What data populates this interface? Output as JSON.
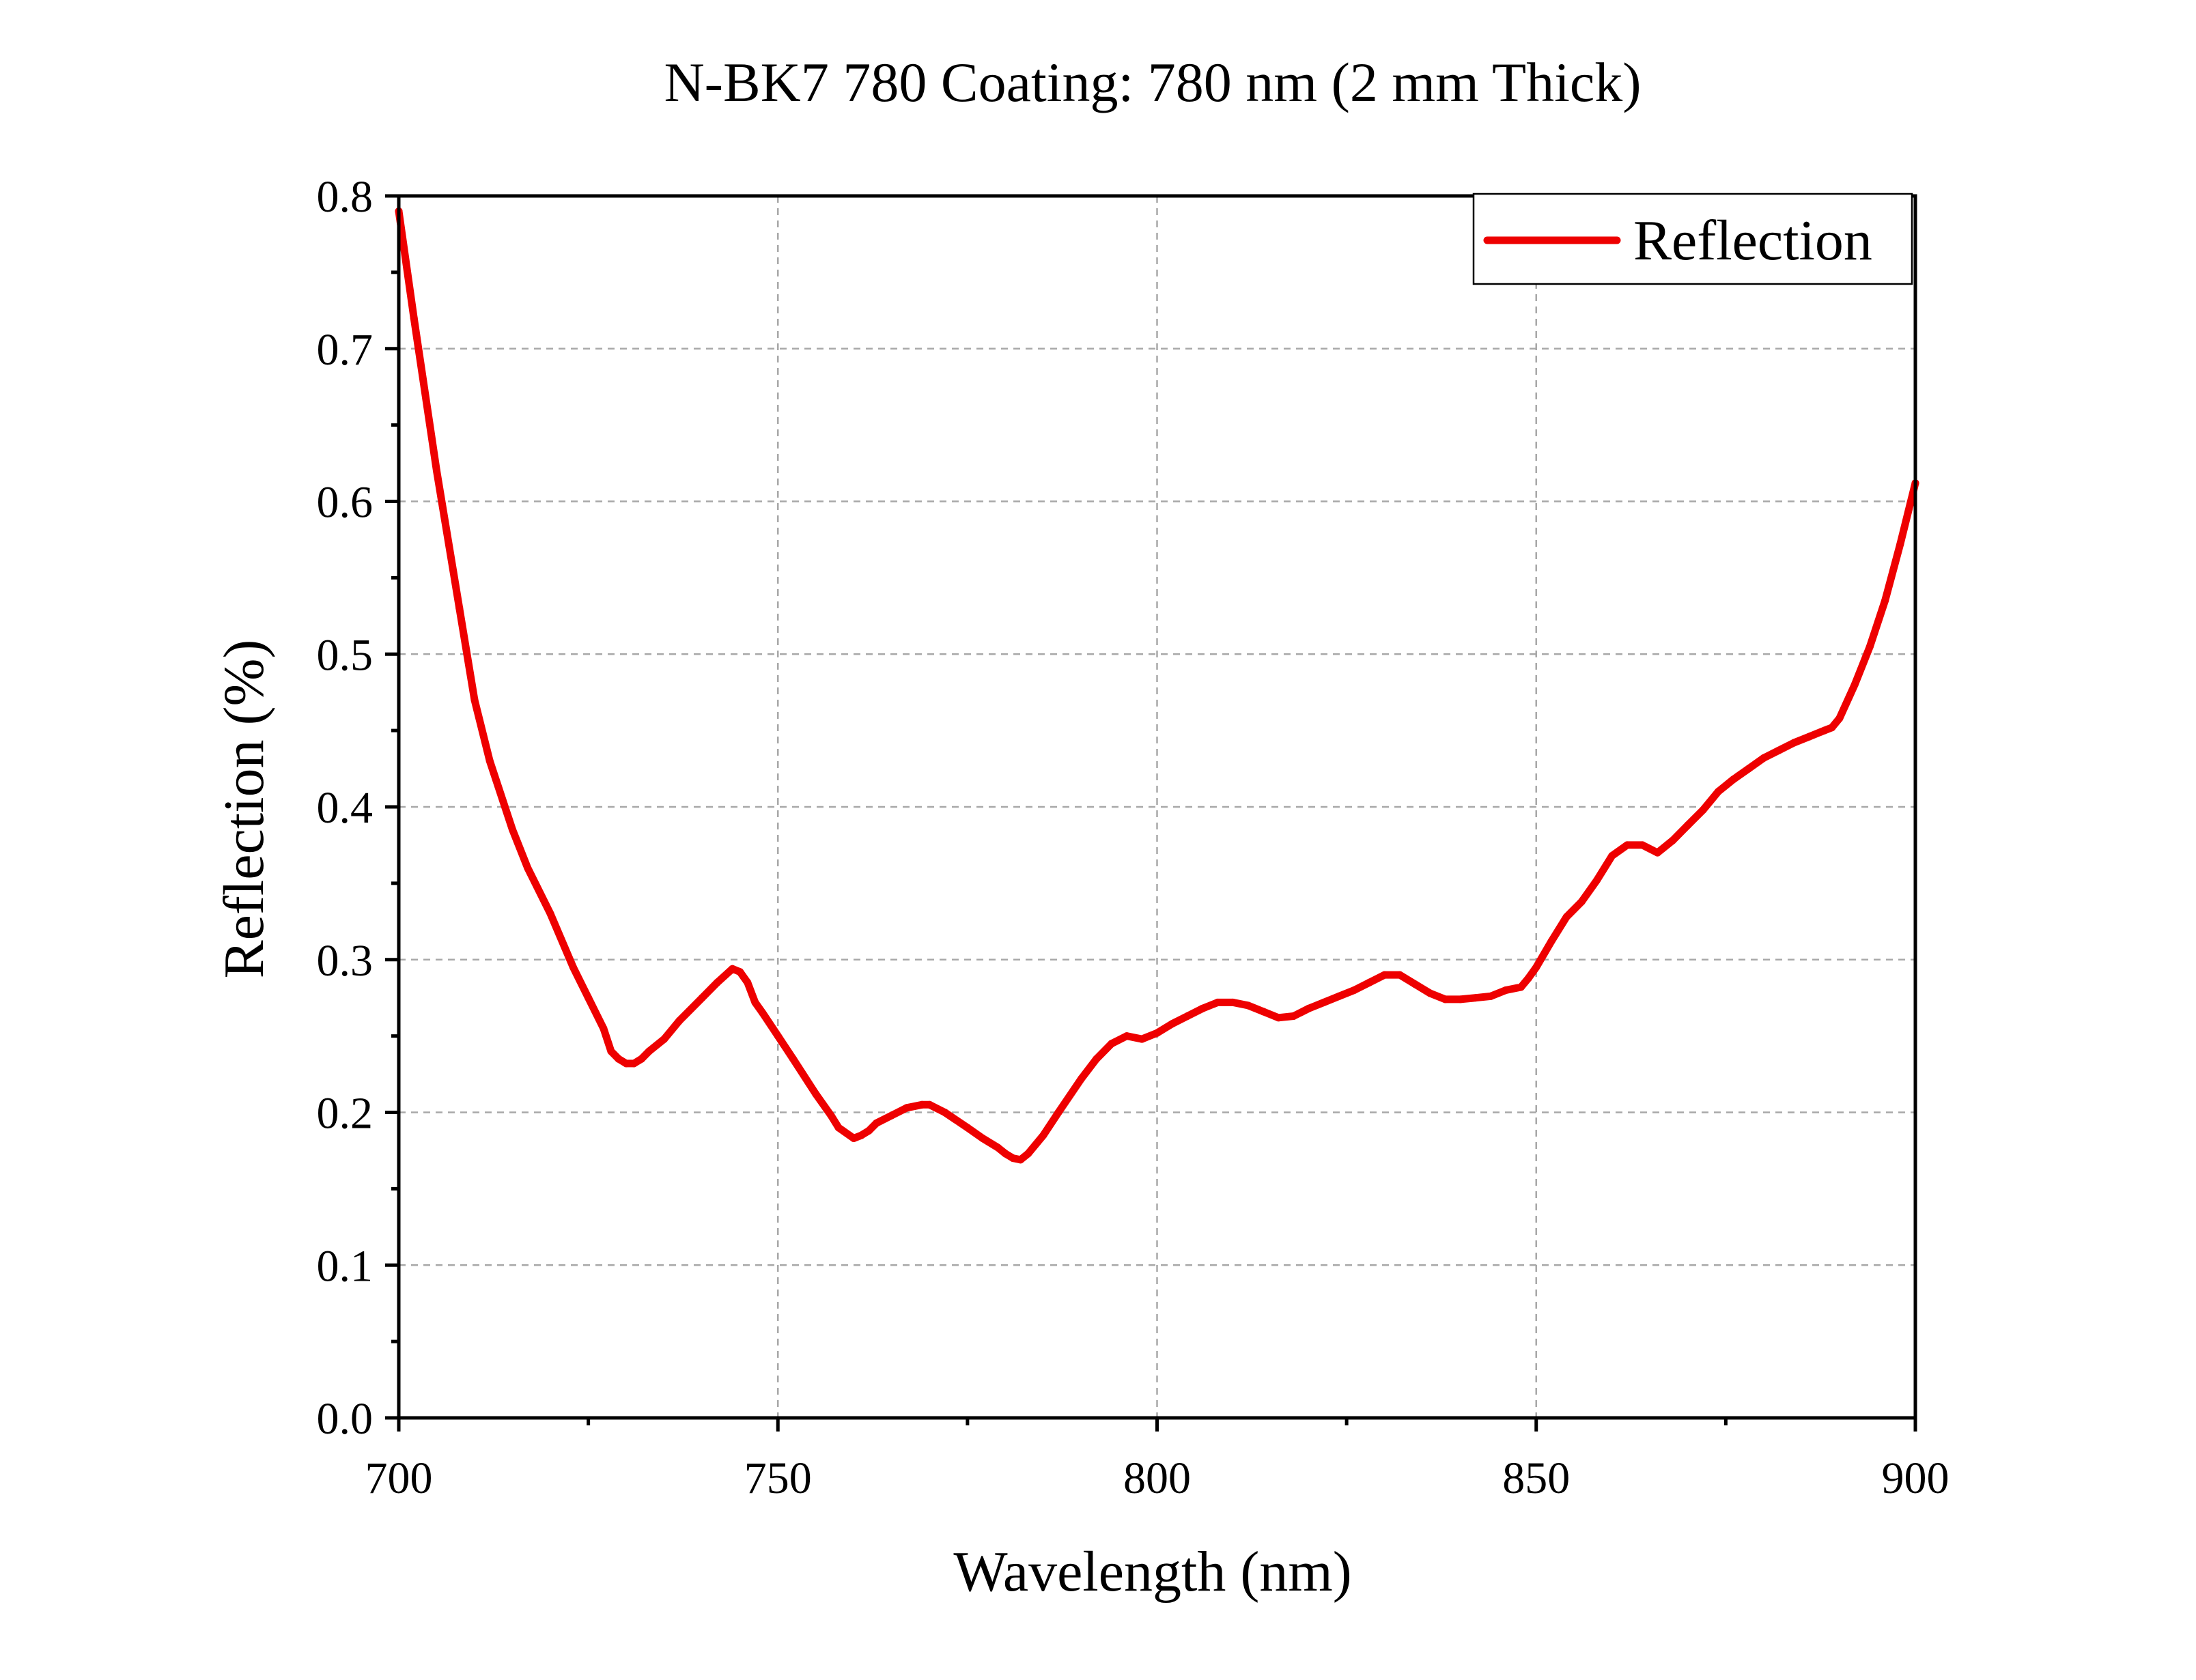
{
  "chart_data": {
    "type": "line",
    "title": "N-BK7 780 Coating: 780 nm (2 mm Thick)",
    "xlabel": "Wavelength (nm)",
    "ylabel": "Reflection (%)",
    "xlim": [
      700,
      900
    ],
    "ylim": [
      0,
      0.8
    ],
    "x_ticks": [
      700,
      750,
      800,
      850,
      900
    ],
    "x_tick_labels": [
      "700",
      "750",
      "800",
      "850",
      "900"
    ],
    "y_ticks": [
      0.0,
      0.1,
      0.2,
      0.3,
      0.4,
      0.5,
      0.6,
      0.7,
      0.8
    ],
    "y_tick_labels": [
      "0.0",
      "0.1",
      "0.2",
      "0.3",
      "0.4",
      "0.5",
      "0.6",
      "0.7",
      "0.8"
    ],
    "grid": true,
    "legend_position": "top-right",
    "series": [
      {
        "name": "Reflection",
        "color": "#ee0000",
        "x": [
          700,
          702,
          705,
          708,
          710,
          712,
          715,
          717,
          720,
          723,
          725,
          727,
          728,
          729,
          730,
          731,
          732,
          733,
          735,
          737,
          740,
          742,
          744,
          745,
          746,
          747,
          748,
          750,
          752,
          755,
          757,
          758,
          760,
          761,
          762,
          763,
          765,
          767,
          769,
          770,
          772,
          775,
          777,
          779,
          780,
          781,
          782,
          783,
          785,
          787,
          790,
          792,
          794,
          796,
          798,
          800,
          802,
          804,
          806,
          808,
          810,
          812,
          814,
          816,
          818,
          820,
          822,
          824,
          826,
          828,
          830,
          832,
          834,
          836,
          838,
          840,
          842,
          844,
          846,
          848,
          849,
          850,
          852,
          854,
          856,
          858,
          860,
          862,
          864,
          866,
          868,
          870,
          872,
          874,
          876,
          878,
          880,
          882,
          884,
          886,
          888,
          889,
          890,
          892,
          894,
          896,
          898,
          900
        ],
        "y": [
          0.79,
          0.72,
          0.62,
          0.53,
          0.47,
          0.43,
          0.385,
          0.36,
          0.33,
          0.295,
          0.275,
          0.255,
          0.24,
          0.235,
          0.232,
          0.232,
          0.235,
          0.24,
          0.248,
          0.26,
          0.275,
          0.285,
          0.294,
          0.292,
          0.285,
          0.272,
          0.265,
          0.25,
          0.235,
          0.212,
          0.198,
          0.19,
          0.183,
          0.185,
          0.188,
          0.193,
          0.198,
          0.203,
          0.205,
          0.205,
          0.2,
          0.19,
          0.183,
          0.177,
          0.173,
          0.17,
          0.169,
          0.173,
          0.185,
          0.2,
          0.222,
          0.235,
          0.245,
          0.25,
          0.248,
          0.252,
          0.258,
          0.263,
          0.268,
          0.272,
          0.272,
          0.27,
          0.266,
          0.262,
          0.263,
          0.268,
          0.272,
          0.276,
          0.28,
          0.285,
          0.29,
          0.29,
          0.284,
          0.278,
          0.274,
          0.274,
          0.275,
          0.276,
          0.28,
          0.282,
          0.288,
          0.295,
          0.312,
          0.328,
          0.338,
          0.352,
          0.368,
          0.375,
          0.375,
          0.37,
          0.378,
          0.388,
          0.398,
          0.41,
          0.418,
          0.425,
          0.432,
          0.437,
          0.442,
          0.446,
          0.45,
          0.452,
          0.458,
          0.48,
          0.505,
          0.535,
          0.572,
          0.612
        ]
      }
    ]
  }
}
